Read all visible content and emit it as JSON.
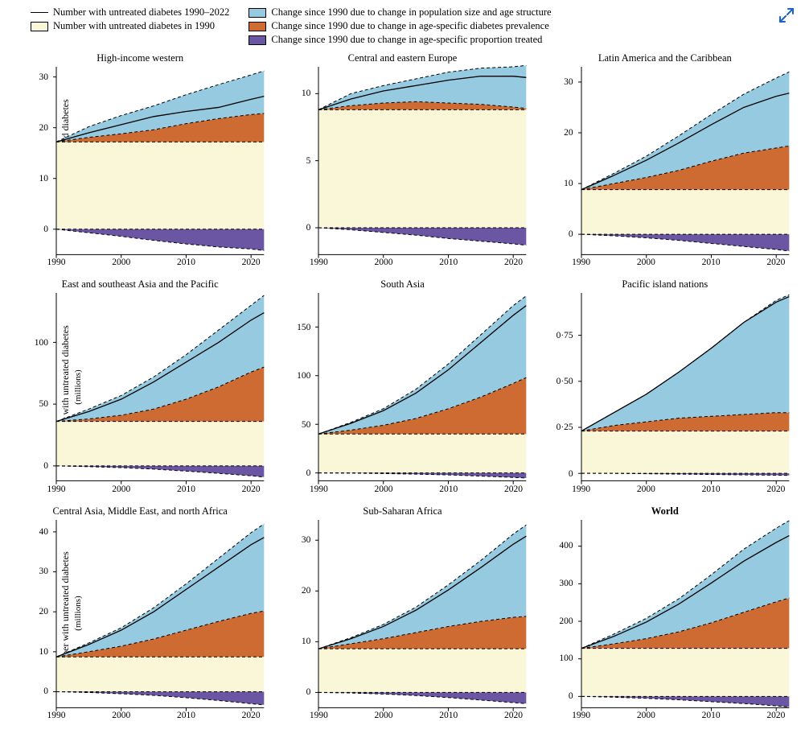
{
  "legend": {
    "line": "Number with untreated diabetes 1990–2022",
    "baseline": "Number with untreated diabetes in 1990",
    "pop": "Change since 1990 due to change in population size and age structure",
    "prev": "Change since 1990 due to change in age-specific diabetes prevalence",
    "treat": "Change since 1990 due to change in age-specific proportion treated"
  },
  "colors": {
    "baseline": "#faf7d9",
    "prev": "#cd6b32",
    "pop": "#96cae0",
    "treat": "#6a56a3",
    "line": "#000000",
    "border": "#000000",
    "expand": "#1e62c9"
  },
  "axis": {
    "xmin": 1990,
    "xmax": 2022,
    "xticks": [
      1990,
      2000,
      2010,
      2020
    ],
    "ylabel": "Number with untreated diabetes",
    "ylabel_sub": "(millions)",
    "title_fontsize": 12.5,
    "tick_fontsize": 11.5
  },
  "panels": [
    {
      "title": "High-income western",
      "bold": false,
      "show_ylabel": true,
      "ymin": -5,
      "ymax": 32,
      "yticks": [
        0,
        10,
        20,
        30
      ],
      "years": [
        1990,
        1995,
        2000,
        2005,
        2010,
        2015,
        2020,
        2022
      ],
      "baseline": 17.2,
      "prev": [
        17.2,
        18.1,
        18.8,
        19.6,
        20.8,
        21.8,
        22.6,
        22.8
      ],
      "pop": [
        17.2,
        20.2,
        22.4,
        24.3,
        26.5,
        28.5,
        30.4,
        31.2
      ],
      "treat": [
        0,
        -0.7,
        -1.4,
        -2.2,
        -2.9,
        -3.5,
        -3.9,
        -4.2
      ],
      "line": [
        17.2,
        19.0,
        20.6,
        22.2,
        23.2,
        24.0,
        25.6,
        26.2
      ]
    },
    {
      "title": "Central and eastern Europe",
      "bold": false,
      "show_ylabel": false,
      "ymin": -2,
      "ymax": 12,
      "yticks": [
        0,
        5,
        10
      ],
      "years": [
        1990,
        1995,
        2000,
        2005,
        2010,
        2015,
        2020,
        2022
      ],
      "baseline": 8.8,
      "prev": [
        8.8,
        9.1,
        9.3,
        9.4,
        9.3,
        9.2,
        9.0,
        8.9
      ],
      "pop": [
        8.8,
        10.0,
        10.6,
        11.1,
        11.6,
        11.9,
        12.0,
        12.1
      ],
      "treat": [
        0,
        -0.15,
        -0.35,
        -0.55,
        -0.8,
        -1.0,
        -1.2,
        -1.3
      ],
      "line": [
        8.8,
        9.6,
        10.2,
        10.6,
        11.0,
        11.3,
        11.3,
        11.2
      ]
    },
    {
      "title": "Latin America and the Caribbean",
      "bold": false,
      "show_ylabel": false,
      "ymin": -4,
      "ymax": 33,
      "yticks": [
        0,
        10,
        20,
        30
      ],
      "years": [
        1990,
        1995,
        2000,
        2005,
        2010,
        2015,
        2020,
        2022
      ],
      "baseline": 8.8,
      "prev": [
        8.8,
        10.0,
        11.2,
        12.6,
        14.4,
        16.0,
        17.0,
        17.4
      ],
      "pop": [
        8.8,
        12.0,
        15.4,
        19.4,
        23.6,
        27.6,
        30.8,
        32.0
      ],
      "treat": [
        0,
        -0.3,
        -0.7,
        -1.2,
        -1.8,
        -2.4,
        -3.0,
        -3.3
      ],
      "line": [
        8.8,
        11.6,
        14.6,
        18.0,
        21.6,
        25.0,
        27.2,
        27.8
      ]
    },
    {
      "title": "East and southeast Asia and the Pacific",
      "bold": false,
      "show_ylabel": true,
      "ymin": -12,
      "ymax": 140,
      "yticks": [
        0,
        50,
        100
      ],
      "years": [
        1990,
        1995,
        2000,
        2005,
        2010,
        2015,
        2020,
        2022
      ],
      "baseline": 36,
      "prev": [
        36,
        38,
        41,
        46,
        54,
        64,
        76,
        80
      ],
      "pop": [
        36,
        46,
        57,
        72,
        90,
        110,
        130,
        138
      ],
      "treat": [
        0,
        -0.6,
        -1.4,
        -2.6,
        -4.2,
        -6.0,
        -8.0,
        -9.0
      ],
      "line": [
        36,
        44,
        54,
        68,
        84,
        100,
        118,
        124
      ]
    },
    {
      "title": "South Asia",
      "bold": false,
      "show_ylabel": false,
      "ymin": -8,
      "ymax": 185,
      "yticks": [
        0,
        50,
        100,
        150
      ],
      "years": [
        1990,
        1995,
        2000,
        2005,
        2010,
        2015,
        2020,
        2022
      ],
      "baseline": 40,
      "prev": [
        40,
        44,
        49,
        56,
        66,
        78,
        92,
        98
      ],
      "pop": [
        40,
        52,
        66,
        86,
        112,
        142,
        172,
        182
      ],
      "treat": [
        0,
        -0.2,
        -0.6,
        -1.2,
        -2.0,
        -3.2,
        -4.6,
        -5.2
      ],
      "line": [
        40,
        51,
        64,
        82,
        106,
        134,
        162,
        172
      ]
    },
    {
      "title": "Pacific island nations",
      "bold": false,
      "show_ylabel": false,
      "ymin": -0.04,
      "ymax": 0.98,
      "yticks": [
        0,
        0.25,
        0.5,
        0.75
      ],
      "ytickfmt": "dot",
      "years": [
        1990,
        1995,
        2000,
        2005,
        2010,
        2015,
        2020,
        2022
      ],
      "baseline": 0.23,
      "prev": [
        0.23,
        0.26,
        0.28,
        0.3,
        0.31,
        0.32,
        0.33,
        0.33
      ],
      "pop": [
        0.23,
        0.33,
        0.43,
        0.55,
        0.68,
        0.82,
        0.94,
        0.97
      ],
      "treat": [
        0,
        0,
        -0.002,
        -0.004,
        -0.006,
        -0.008,
        -0.01,
        -0.011
      ],
      "line": [
        0.23,
        0.33,
        0.43,
        0.55,
        0.68,
        0.82,
        0.93,
        0.96
      ]
    },
    {
      "title": "Central Asia, Middle East, and north Africa",
      "bold": false,
      "show_ylabel": true,
      "ymin": -4,
      "ymax": 43,
      "yticks": [
        0,
        10,
        20,
        30,
        40
      ],
      "years": [
        1990,
        1995,
        2000,
        2005,
        2010,
        2015,
        2020,
        2022
      ],
      "baseline": 8.7,
      "prev": [
        8.7,
        10.0,
        11.4,
        13.2,
        15.4,
        17.6,
        19.6,
        20.2
      ],
      "pop": [
        8.7,
        12.2,
        16.0,
        21.0,
        27.0,
        33.4,
        39.8,
        42.0
      ],
      "treat": [
        0,
        -0.2,
        -0.5,
        -0.9,
        -1.5,
        -2.2,
        -3.0,
        -3.3
      ],
      "line": [
        8.7,
        11.8,
        15.4,
        20.0,
        25.6,
        31.2,
        36.8,
        38.6
      ]
    },
    {
      "title": "Sub-Saharan Africa",
      "bold": false,
      "show_ylabel": false,
      "ymin": -3,
      "ymax": 34,
      "yticks": [
        0,
        10,
        20,
        30
      ],
      "years": [
        1990,
        1995,
        2000,
        2005,
        2010,
        2015,
        2020,
        2022
      ],
      "baseline": 8.6,
      "prev": [
        8.6,
        9.6,
        10.6,
        11.8,
        13.0,
        14.0,
        14.8,
        15.0
      ],
      "pop": [
        8.6,
        10.8,
        13.4,
        16.8,
        21.2,
        26.0,
        31.2,
        33.0
      ],
      "treat": [
        0,
        -0.1,
        -0.3,
        -0.6,
        -1.0,
        -1.5,
        -2.0,
        -2.2
      ],
      "line": [
        8.6,
        10.6,
        13.0,
        16.2,
        20.2,
        24.6,
        29.2,
        30.8
      ]
    },
    {
      "title": "World",
      "bold": true,
      "show_ylabel": false,
      "ymin": -30,
      "ymax": 470,
      "yticks": [
        0,
        100,
        200,
        300,
        400
      ],
      "years": [
        1990,
        1995,
        2000,
        2005,
        2010,
        2015,
        2020,
        2022
      ],
      "baseline": 128,
      "prev": [
        128,
        140,
        154,
        172,
        196,
        224,
        252,
        262
      ],
      "pop": [
        128,
        166,
        208,
        260,
        324,
        392,
        448,
        468
      ],
      "treat": [
        0,
        -2,
        -5,
        -9,
        -14,
        -19,
        -25,
        -28
      ],
      "line": [
        128,
        160,
        198,
        246,
        302,
        360,
        410,
        428
      ]
    }
  ]
}
